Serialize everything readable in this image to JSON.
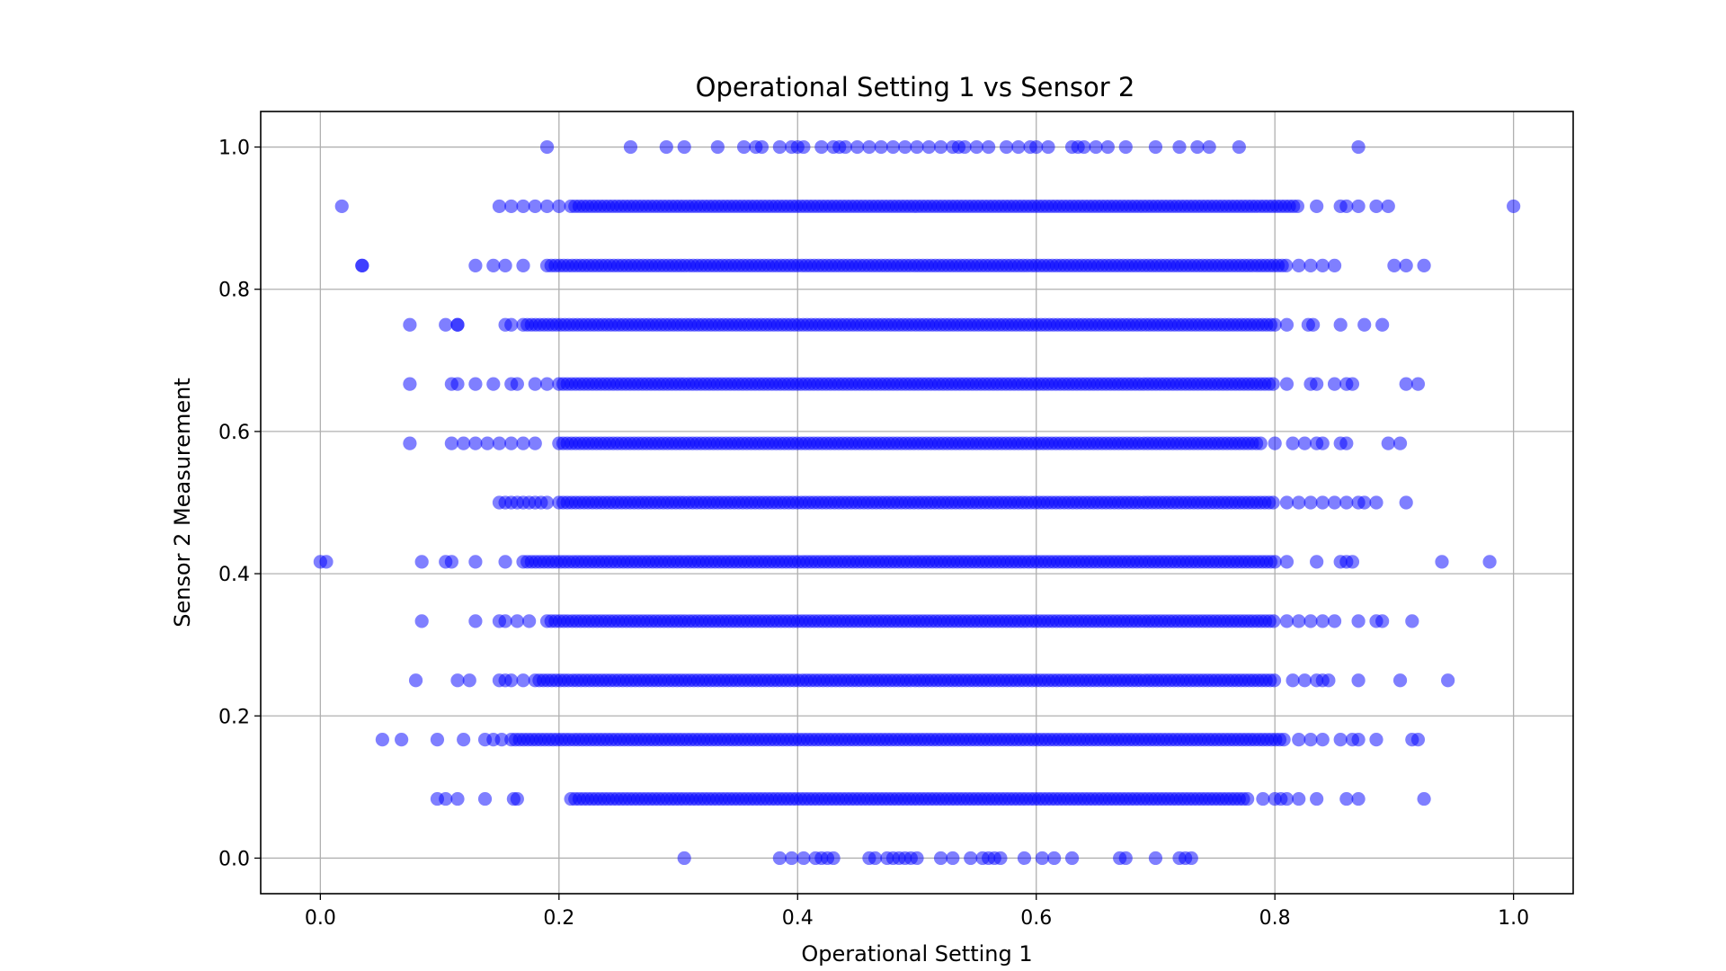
{
  "chart_data": {
    "type": "scatter",
    "title": "Operational Setting 1 vs Sensor 2",
    "xlabel": "Operational Setting 1",
    "ylabel": "Sensor 2 Measurement",
    "xlim": [
      -0.05,
      1.05
    ],
    "ylim": [
      -0.05,
      1.05
    ],
    "xticks": [
      "0.0",
      "0.2",
      "0.4",
      "0.6",
      "0.8",
      "1.0"
    ],
    "yticks": [
      "0.0",
      "0.2",
      "0.4",
      "0.6",
      "0.8",
      "1.0"
    ],
    "grid": true,
    "marker_color": "#0000ff",
    "marker_alpha": 0.5,
    "y_levels": [
      0.0,
      0.0833,
      0.1667,
      0.25,
      0.3333,
      0.4167,
      0.5,
      0.5833,
      0.6667,
      0.75,
      0.8333,
      0.9167,
      1.0
    ],
    "series": [
      {
        "y": 1.0,
        "dense_range": null,
        "x": [
          0.19,
          0.26,
          0.29,
          0.305,
          0.333,
          0.355,
          0.365,
          0.37,
          0.385,
          0.395,
          0.4,
          0.405,
          0.42,
          0.43,
          0.435,
          0.44,
          0.45,
          0.46,
          0.47,
          0.48,
          0.49,
          0.5,
          0.51,
          0.52,
          0.53,
          0.535,
          0.54,
          0.55,
          0.56,
          0.575,
          0.585,
          0.595,
          0.6,
          0.61,
          0.63,
          0.635,
          0.64,
          0.65,
          0.66,
          0.675,
          0.7,
          0.72,
          0.735,
          0.745,
          0.77,
          0.87
        ]
      },
      {
        "y": 0.9167,
        "dense_range": [
          0.21,
          0.82
        ],
        "x": [
          0.018,
          0.15,
          0.16,
          0.17,
          0.18,
          0.19,
          0.2,
          0.835,
          0.855,
          0.86,
          0.87,
          0.885,
          0.895,
          1.0
        ]
      },
      {
        "y": 0.8333,
        "dense_range": [
          0.19,
          0.81
        ],
        "x": [
          0.035,
          0.035,
          0.13,
          0.145,
          0.155,
          0.17,
          0.82,
          0.83,
          0.84,
          0.85,
          0.9,
          0.91,
          0.925
        ]
      },
      {
        "y": 0.75,
        "dense_range": [
          0.17,
          0.8
        ],
        "x": [
          0.075,
          0.105,
          0.115,
          0.115,
          0.155,
          0.16,
          0.81,
          0.828,
          0.832,
          0.855,
          0.875,
          0.89
        ]
      },
      {
        "y": 0.6667,
        "dense_range": [
          0.2,
          0.8
        ],
        "x": [
          0.075,
          0.11,
          0.115,
          0.13,
          0.145,
          0.16,
          0.165,
          0.18,
          0.19,
          0.81,
          0.83,
          0.835,
          0.85,
          0.86,
          0.865,
          0.91,
          0.92
        ]
      },
      {
        "y": 0.5833,
        "dense_range": [
          0.2,
          0.79
        ],
        "x": [
          0.075,
          0.11,
          0.12,
          0.13,
          0.14,
          0.15,
          0.16,
          0.17,
          0.18,
          0.8,
          0.815,
          0.825,
          0.835,
          0.84,
          0.855,
          0.86,
          0.895,
          0.905
        ]
      },
      {
        "y": 0.5,
        "dense_range": [
          0.2,
          0.8
        ],
        "x": [
          0.15,
          0.155,
          0.16,
          0.165,
          0.17,
          0.175,
          0.18,
          0.185,
          0.19,
          0.81,
          0.82,
          0.83,
          0.84,
          0.85,
          0.86,
          0.87,
          0.875,
          0.885,
          0.91
        ]
      },
      {
        "y": 0.4167,
        "dense_range": [
          0.17,
          0.8
        ],
        "x": [
          0.0,
          0.005,
          0.085,
          0.105,
          0.11,
          0.13,
          0.155,
          0.81,
          0.835,
          0.855,
          0.86,
          0.865,
          0.94,
          0.98
        ]
      },
      {
        "y": 0.3333,
        "dense_range": [
          0.19,
          0.8
        ],
        "x": [
          0.085,
          0.13,
          0.15,
          0.155,
          0.165,
          0.175,
          0.81,
          0.82,
          0.83,
          0.84,
          0.85,
          0.87,
          0.885,
          0.89,
          0.915
        ]
      },
      {
        "y": 0.25,
        "dense_range": [
          0.18,
          0.8
        ],
        "x": [
          0.08,
          0.115,
          0.125,
          0.15,
          0.155,
          0.16,
          0.17,
          0.815,
          0.825,
          0.835,
          0.84,
          0.845,
          0.87,
          0.905,
          0.945
        ]
      },
      {
        "y": 0.1667,
        "dense_range": [
          0.16,
          0.81
        ],
        "x": [
          0.052,
          0.068,
          0.098,
          0.12,
          0.138,
          0.145,
          0.152,
          0.82,
          0.83,
          0.84,
          0.855,
          0.865,
          0.87,
          0.885,
          0.915,
          0.92
        ]
      },
      {
        "y": 0.0833,
        "dense_range": [
          0.21,
          0.78
        ],
        "x": [
          0.098,
          0.105,
          0.115,
          0.138,
          0.162,
          0.165,
          0.79,
          0.8,
          0.805,
          0.81,
          0.82,
          0.835,
          0.86,
          0.87,
          0.925
        ]
      },
      {
        "y": 0.0,
        "dense_range": null,
        "x": [
          0.305,
          0.385,
          0.395,
          0.405,
          0.415,
          0.42,
          0.425,
          0.43,
          0.46,
          0.465,
          0.475,
          0.48,
          0.485,
          0.49,
          0.495,
          0.5,
          0.52,
          0.53,
          0.545,
          0.555,
          0.56,
          0.565,
          0.57,
          0.59,
          0.605,
          0.615,
          0.63,
          0.67,
          0.675,
          0.7,
          0.72,
          0.725,
          0.73
        ]
      }
    ]
  }
}
